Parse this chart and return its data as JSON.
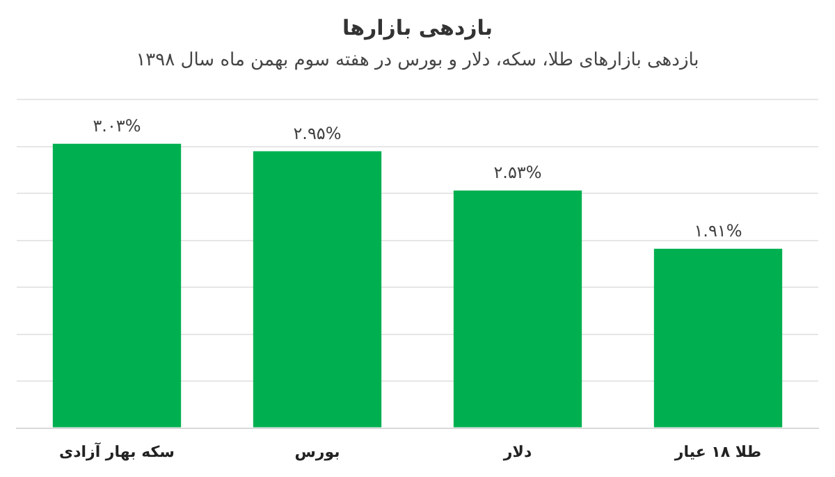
{
  "chart_data": {
    "type": "bar",
    "title": "بازدهی بازارها",
    "subtitle": "بازدهی بازارهای طلا، سکه، دلار و بورس در هفته سوم بهمن ماه سال ۱۳۹۸",
    "categories": [
      "سکه بهار آزادی",
      "بورس",
      "دلار",
      "طلا ۱۸ عیار"
    ],
    "values": [
      3.03,
      2.95,
      2.53,
      1.91
    ],
    "value_labels": [
      "۳.۰۳%",
      "۲.۹۵%",
      "۲.۵۳%",
      "۱.۹۱%"
    ],
    "color": "#00b050",
    "ylim": [
      0,
      3.5
    ],
    "yticks": [
      {
        "value": 0,
        "label": null
      },
      {
        "value": 0.5,
        "label": null
      },
      {
        "value": 1,
        "label": null
      },
      {
        "value": 1.5,
        "label": null
      },
      {
        "value": 2,
        "label": null
      },
      {
        "value": 2.5,
        "label": null
      },
      {
        "value": 3,
        "label": null
      },
      {
        "value": 3.5,
        "label": null
      }
    ],
    "grid": "y",
    "tick_labels": "x",
    "legend": false
  }
}
